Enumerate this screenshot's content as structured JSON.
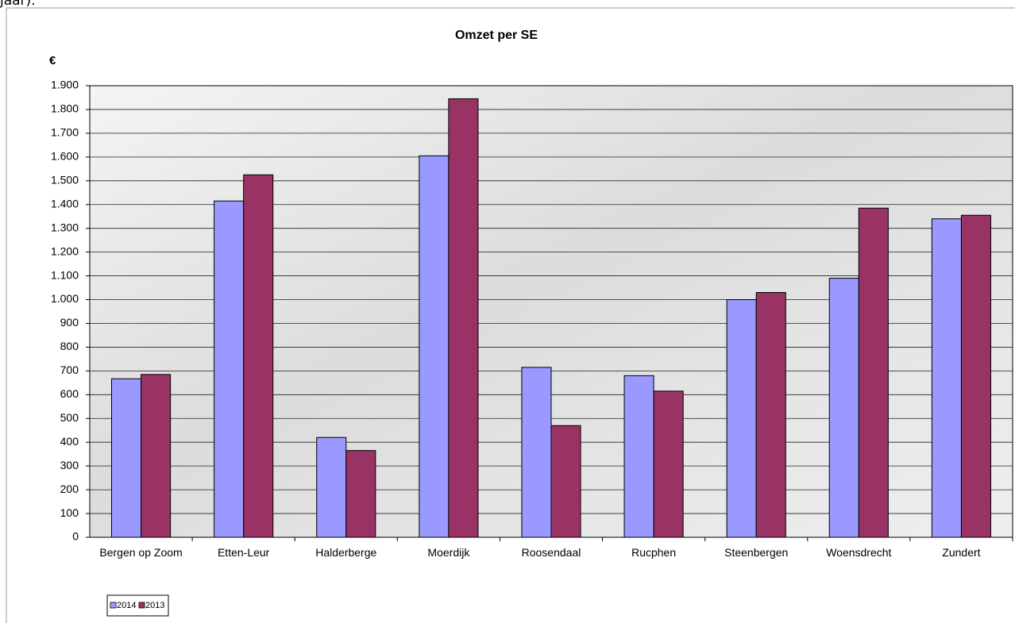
{
  "header_text": "jaar).",
  "chart_data": {
    "type": "bar",
    "title": "Omzet per SE",
    "y_label": "€",
    "categories": [
      "Bergen op Zoom",
      "Etten-Leur",
      "Halderberge",
      "Moerdijk",
      "Roosendaal",
      "Rucphen",
      "Steenbergen",
      "Woensdrecht",
      "Zundert"
    ],
    "series": [
      {
        "name": "2014",
        "color": "#9999ff",
        "values": [
          667,
          1415,
          420,
          1605,
          715,
          680,
          1000,
          1090,
          1340
        ]
      },
      {
        "name": "2013",
        "color": "#993366",
        "values": [
          685,
          1525,
          365,
          1845,
          470,
          615,
          1030,
          1385,
          1355
        ]
      }
    ],
    "ylim": [
      0,
      1900
    ],
    "yticks": [
      0,
      100,
      200,
      300,
      400,
      500,
      600,
      700,
      800,
      900,
      {
        "value": 1000,
        "label": "1.000"
      },
      {
        "value": 1100,
        "label": "1.100"
      },
      {
        "value": 1200,
        "label": "1.200"
      },
      {
        "value": 1300,
        "label": "1.300"
      },
      {
        "value": 1400,
        "label": "1.400"
      },
      {
        "value": 1500,
        "label": "1.500"
      },
      {
        "value": 1600,
        "label": "1.600"
      },
      {
        "value": 1700,
        "label": "1.700"
      },
      {
        "value": 1800,
        "label": "1.800"
      },
      {
        "value": 1900,
        "label": "1.900"
      }
    ],
    "grid": true,
    "legend": "bottom-left"
  }
}
